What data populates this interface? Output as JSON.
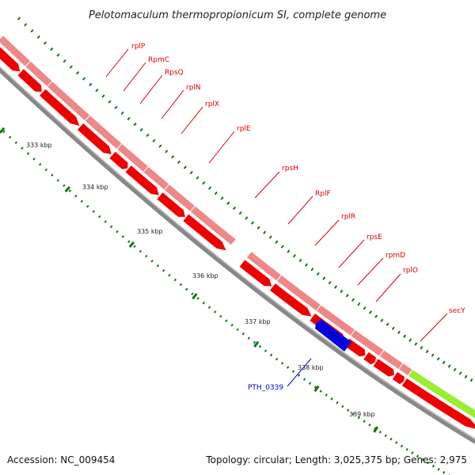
{
  "title": "Pelotomaculum thermopropionicum SI, complete genome",
  "footer": {
    "accession": "Accession: NC_009454",
    "summary": "Topology: circular; Length: 3,025,375 bp; Genes: 2,975"
  },
  "colors": {
    "gene_fill": "#ee0000",
    "cds_fill": "#ee8888",
    "rrna_fill": "#99ee33",
    "reverse_gene_fill": "#0000dd",
    "backbone": "#888888",
    "tick": "#117711",
    "label_red": "#dd0000",
    "label_blue": "#0000cc"
  },
  "ticks": [
    {
      "label": "333 kbp"
    },
    {
      "label": "334 kbp"
    },
    {
      "label": "335 kbp"
    },
    {
      "label": "336 kbp"
    },
    {
      "label": "337 kbp"
    },
    {
      "label": "338 kbp"
    },
    {
      "label": "339 kbp"
    }
  ],
  "gene_labels": [
    {
      "text": "rplP",
      "strand": "forward"
    },
    {
      "text": "RpmC",
      "strand": "forward"
    },
    {
      "text": "RpsQ",
      "strand": "forward"
    },
    {
      "text": "rplN",
      "strand": "forward"
    },
    {
      "text": "rplX",
      "strand": "forward"
    },
    {
      "text": "rplE",
      "strand": "forward"
    },
    {
      "text": "rpsH",
      "strand": "forward"
    },
    {
      "text": "RplF",
      "strand": "forward"
    },
    {
      "text": "rplR",
      "strand": "forward"
    },
    {
      "text": "rpsE",
      "strand": "forward"
    },
    {
      "text": "rpmD",
      "strand": "forward"
    },
    {
      "text": "rplO",
      "strand": "forward"
    },
    {
      "text": "secY",
      "strand": "forward"
    },
    {
      "text": "PTH_0339",
      "strand": "reverse"
    }
  ]
}
